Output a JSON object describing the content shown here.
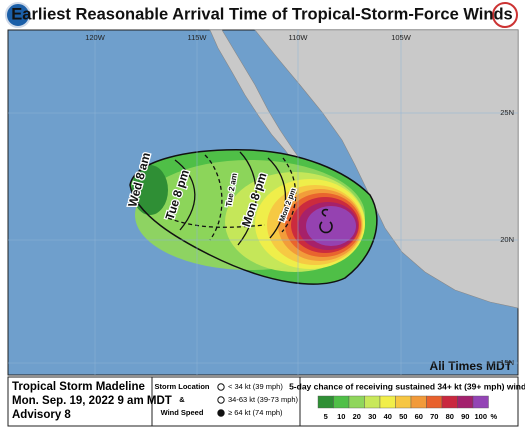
{
  "header": {
    "title": "Earliest Reasonable Arrival Time of Tropical-Storm-Force Winds"
  },
  "map": {
    "longitude_labels": [
      "120W",
      "115W",
      "110W",
      "105W"
    ],
    "latitude_labels": [
      "25N",
      "20N",
      "15N"
    ],
    "time_labels": [
      "Wed 8 am",
      "Tue 8 pm",
      "Tue 2 am",
      "Mon 8 pm",
      "Mon 2 pm"
    ],
    "note": "All Times MDT"
  },
  "footer": {
    "storm_name": "Tropical Storm Madeline",
    "date": "Mon. Sep. 19, 2022  9 am MDT",
    "advisory": "Advisory 8",
    "symbol_legend": {
      "title_lines": [
        "Storm Location",
        "&",
        "Wind Speed"
      ],
      "items": [
        "< 34 kt (39 mph)",
        "34-63 kt (39-73 mph)",
        "≥ 64 kt (74 mph)"
      ]
    },
    "probability_legend": {
      "title": "5-day chance of receiving sustained 34+ kt (39+ mph) winds",
      "levels": [
        5,
        10,
        20,
        30,
        40,
        50,
        60,
        70,
        80,
        90,
        100
      ],
      "colors": [
        "#2f8f35",
        "#4fbf47",
        "#8fd65c",
        "#c8e85a",
        "#f1ee4a",
        "#f6c642",
        "#f19a3a",
        "#e8612d",
        "#c9283f",
        "#a3216d",
        "#9344b5"
      ],
      "unit": "%"
    }
  }
}
